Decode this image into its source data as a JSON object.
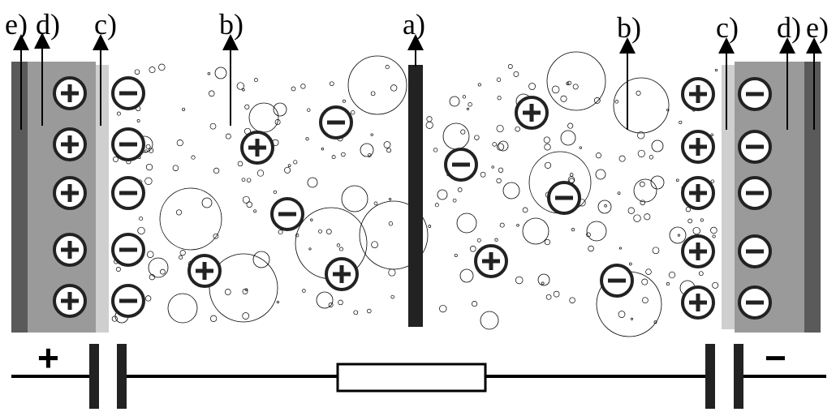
{
  "labels": {
    "a": "a)",
    "b": "b)",
    "c": "c)",
    "d": "d)",
    "e": "e)"
  },
  "circuit": {
    "plus": "+",
    "minus": "−"
  },
  "ions": {
    "left_electrode": [
      "+",
      "+",
      "+",
      "+",
      "+"
    ],
    "left_layer": [
      "−",
      "−",
      "−",
      "−",
      "−"
    ],
    "right_layer": [
      "+",
      "+",
      "+",
      "+",
      "+"
    ],
    "right_electrode": [
      "−",
      "−",
      "−",
      "−",
      "−"
    ],
    "free_left": [
      "+",
      "−",
      "−",
      "+",
      "+"
    ],
    "free_right": [
      "+",
      "−",
      "−",
      "+",
      "−"
    ]
  },
  "colors": {
    "collector": "#5a5a5a",
    "electrode": "#9a9a9a",
    "interface": "#cfcfcf",
    "separator": "#222222",
    "ink": "#000000"
  }
}
